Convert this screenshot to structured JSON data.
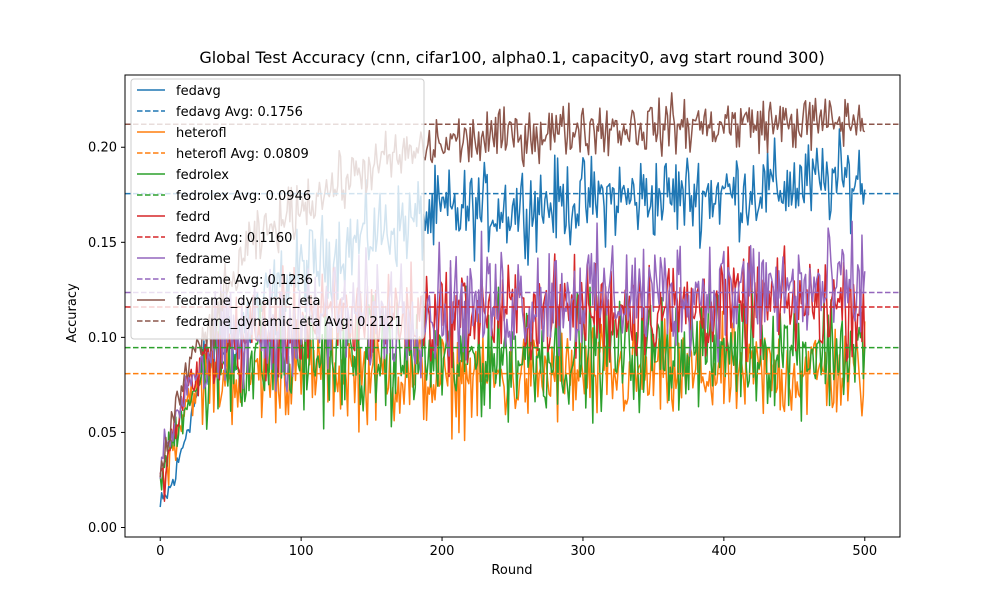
{
  "chart_data": {
    "type": "line",
    "title": "Global Test Accuracy (cnn, cifar100, alpha0.1, capacity0, avg start round 300)",
    "xlabel": "Round",
    "ylabel": "Accuracy",
    "xlim": [
      -25,
      525
    ],
    "ylim": [
      -0.005,
      0.238
    ],
    "x_ticks": [
      0,
      100,
      200,
      300,
      400,
      500
    ],
    "y_ticks": [
      0.0,
      0.05,
      0.1,
      0.15,
      0.2
    ],
    "x_tick_labels": [
      "0",
      "100",
      "200",
      "300",
      "400",
      "500"
    ],
    "y_tick_labels": [
      "0.00",
      "0.05",
      "0.10",
      "0.15",
      "0.20"
    ],
    "legend_position": "top-left",
    "rounds": 500,
    "series": [
      {
        "name": "fedavg",
        "color": "#1f77b4",
        "avg": 0.1756,
        "avg_label": "fedavg Avg: 0.1756",
        "profile": [
          [
            0,
            0.01
          ],
          [
            10,
            0.025
          ],
          [
            20,
            0.055
          ],
          [
            30,
            0.08
          ],
          [
            50,
            0.1
          ],
          [
            100,
            0.135
          ],
          [
            150,
            0.155
          ],
          [
            200,
            0.165
          ],
          [
            300,
            0.172
          ],
          [
            400,
            0.176
          ],
          [
            500,
            0.184
          ]
        ],
        "noise": 0.011,
        "noise_early": 0.004
      },
      {
        "name": "heterofl",
        "color": "#ff7f0e",
        "avg": 0.0809,
        "avg_label": "heterofl Avg: 0.0809",
        "profile": [
          [
            0,
            0.02
          ],
          [
            10,
            0.045
          ],
          [
            20,
            0.07
          ],
          [
            40,
            0.08
          ],
          [
            100,
            0.084
          ],
          [
            200,
            0.078
          ],
          [
            300,
            0.08
          ],
          [
            400,
            0.081
          ],
          [
            500,
            0.082
          ]
        ],
        "noise": 0.013,
        "noise_early": 0.006
      },
      {
        "name": "fedrolex",
        "color": "#2ca02c",
        "avg": 0.0946,
        "avg_label": "fedrolex Avg: 0.0946",
        "profile": [
          [
            0,
            0.025
          ],
          [
            10,
            0.048
          ],
          [
            20,
            0.07
          ],
          [
            40,
            0.085
          ],
          [
            100,
            0.09
          ],
          [
            200,
            0.088
          ],
          [
            300,
            0.093
          ],
          [
            400,
            0.095
          ],
          [
            500,
            0.093
          ]
        ],
        "noise": 0.015,
        "noise_early": 0.006
      },
      {
        "name": "fedrd",
        "color": "#d62728",
        "avg": 0.116,
        "avg_label": "fedrd Avg: 0.1160",
        "profile": [
          [
            0,
            0.02
          ],
          [
            10,
            0.05
          ],
          [
            20,
            0.075
          ],
          [
            40,
            0.095
          ],
          [
            100,
            0.108
          ],
          [
            200,
            0.112
          ],
          [
            300,
            0.115
          ],
          [
            400,
            0.116
          ],
          [
            500,
            0.118
          ]
        ],
        "noise": 0.013,
        "noise_early": 0.006
      },
      {
        "name": "fedrame",
        "color": "#9467bd",
        "avg": 0.1236,
        "avg_label": "fedrame Avg: 0.1236",
        "profile": [
          [
            0,
            0.03
          ],
          [
            10,
            0.055
          ],
          [
            20,
            0.078
          ],
          [
            40,
            0.095
          ],
          [
            100,
            0.108
          ],
          [
            200,
            0.116
          ],
          [
            300,
            0.122
          ],
          [
            400,
            0.124
          ],
          [
            500,
            0.125
          ]
        ],
        "noise": 0.015,
        "noise_early": 0.006
      },
      {
        "name": "fedrame_dynamic_eta",
        "color": "#8c564b",
        "avg": 0.2121,
        "avg_label": "fedrame_dynamic_eta Avg: 0.2121",
        "profile": [
          [
            0,
            0.03
          ],
          [
            10,
            0.06
          ],
          [
            20,
            0.085
          ],
          [
            40,
            0.11
          ],
          [
            60,
            0.145
          ],
          [
            100,
            0.17
          ],
          [
            150,
            0.19
          ],
          [
            200,
            0.202
          ],
          [
            300,
            0.21
          ],
          [
            400,
            0.212
          ],
          [
            500,
            0.214
          ]
        ],
        "noise": 0.007,
        "noise_early": 0.005
      }
    ]
  }
}
